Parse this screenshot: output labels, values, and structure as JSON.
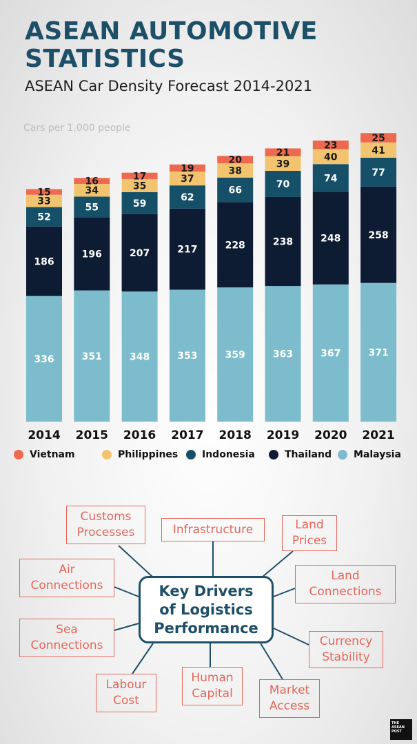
{
  "header": {
    "title": "ASEAN AUTOMOTIVE STATISTICS",
    "subtitle": "ASEAN Car Density Forecast 2014-2021"
  },
  "chart_data": {
    "type": "bar",
    "stacked": true,
    "ylabel": "Cars per 1,000 people",
    "categories": [
      "2014",
      "2015",
      "2016",
      "2017",
      "2018",
      "2019",
      "2020",
      "2021"
    ],
    "series": [
      {
        "name": "Malaysia",
        "color": "#7cbccc",
        "values": [
          336,
          351,
          348,
          353,
          359,
          363,
          367,
          371
        ]
      },
      {
        "name": "Thailand",
        "color": "#0d1b33",
        "values": [
          186,
          196,
          207,
          217,
          228,
          238,
          248,
          258
        ]
      },
      {
        "name": "Indonesia",
        "color": "#164f68",
        "values": [
          52,
          55,
          59,
          62,
          66,
          70,
          74,
          77
        ]
      },
      {
        "name": "Philippines",
        "color": "#f2c46f",
        "values": [
          33,
          34,
          35,
          37,
          38,
          39,
          40,
          41
        ]
      },
      {
        "name": "Vietnam",
        "color": "#ed6a50",
        "values": [
          15,
          16,
          17,
          19,
          20,
          21,
          23,
          25
        ]
      }
    ],
    "legend": {
      "position": "bottom",
      "order": [
        "Vietnam",
        "Philippines",
        "Indonesia",
        "Thailand",
        "Malaysia"
      ]
    }
  },
  "diagram": {
    "center": "Key Drivers\nof Logistics\nPerformance",
    "drivers": [
      {
        "id": "customs",
        "label": "Customs\nProcesses"
      },
      {
        "id": "infrastructure",
        "label": "Infrastructure"
      },
      {
        "id": "land-prices",
        "label": "Land\nPrices"
      },
      {
        "id": "air",
        "label": "Air\nConnections"
      },
      {
        "id": "land-connections",
        "label": "Land\nConnections"
      },
      {
        "id": "sea",
        "label": "Sea\nConnections"
      },
      {
        "id": "currency",
        "label": "Currency\nStability"
      },
      {
        "id": "labour",
        "label": "Labour\nCost"
      },
      {
        "id": "human",
        "label": "Human\nCapital"
      },
      {
        "id": "market",
        "label": "Market\nAccess"
      }
    ],
    "colors": {
      "driver": "#e2675a",
      "center": "#1d4f68"
    }
  },
  "logo": {
    "text": "THE ASEAN POST"
  }
}
